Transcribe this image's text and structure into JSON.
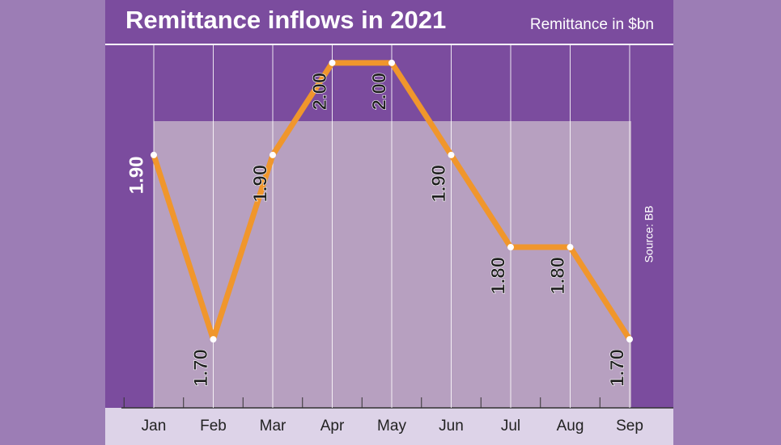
{
  "chart_data": {
    "type": "line",
    "title": "Remittance inflows in 2021",
    "subtitle": "Remittance in $bn",
    "source": "Source: BB",
    "categories": [
      "Jan",
      "Feb",
      "Mar",
      "Apr",
      "May",
      "Jun",
      "Jul",
      "Aug",
      "Sep"
    ],
    "values": [
      1.9,
      1.7,
      1.9,
      2.0,
      2.0,
      1.9,
      1.8,
      1.8,
      1.7
    ],
    "value_labels": [
      "1.90",
      "1.70",
      "1.90",
      "2.00",
      "2.00",
      "1.90",
      "1.80",
      "1.80",
      "1.70"
    ],
    "color": "#f0962c",
    "ylim": [
      1.63,
      2.02
    ],
    "grid": true
  }
}
